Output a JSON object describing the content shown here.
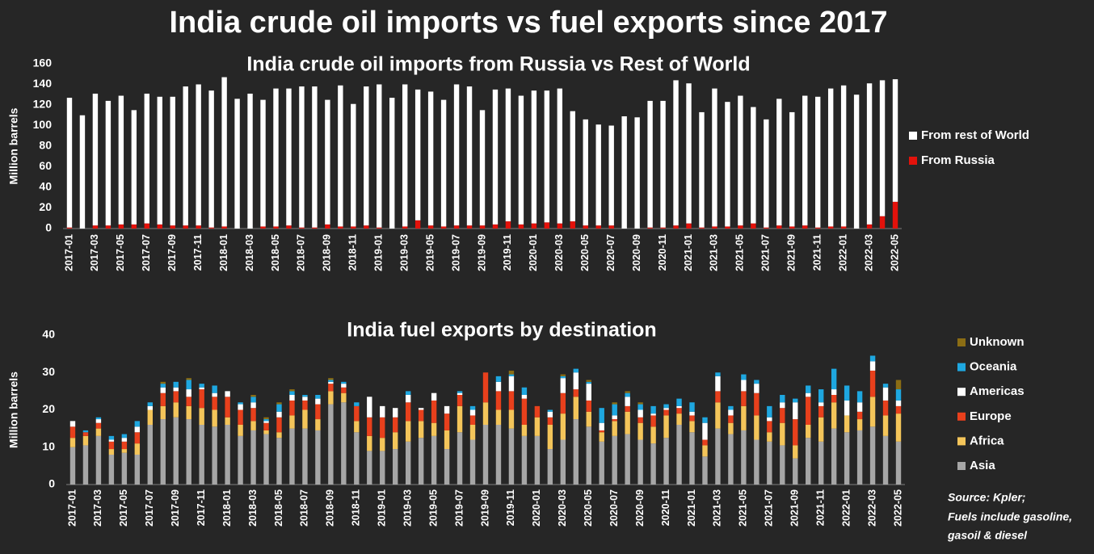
{
  "title": "India crude oil imports vs fuel exports since 2017",
  "notes": [
    "Source: Kpler;",
    "Fuels include gasoline,",
    "gasoil & diesel"
  ],
  "chart_data": [
    {
      "type": "stacked_bar",
      "title": "India crude oil imports from Russia vs Rest of World",
      "y_label": "Million barrels",
      "categories": [
        "2017-01",
        null,
        "2017-03",
        null,
        "2017-05",
        null,
        "2017-07",
        null,
        "2017-09",
        null,
        "2017-11",
        null,
        "2018-01",
        null,
        "2018-03",
        null,
        "2018-05",
        null,
        "2018-07",
        null,
        "2018-09",
        null,
        "2018-11",
        null,
        "2019-01",
        null,
        "2019-03",
        null,
        "2019-05",
        null,
        "2019-07",
        null,
        "2019-09",
        null,
        "2019-11",
        null,
        "2020-01",
        null,
        "2020-03",
        null,
        "2020-05",
        null,
        "2020-07",
        null,
        "2020-09",
        null,
        "2020-11",
        null,
        "2021-01",
        null,
        "2021-03",
        null,
        "2021-05",
        null,
        "2021-07",
        null,
        "2021-09",
        null,
        "2021-11",
        null,
        "2022-01",
        null,
        "2022-03",
        null,
        "2022-05"
      ],
      "series": [
        {
          "name": "From Russia",
          "color": "#e3120b",
          "values": [
            1,
            0,
            3,
            3,
            4,
            4,
            5,
            4,
            3,
            3,
            3,
            1,
            2,
            0,
            0,
            2,
            2,
            3,
            1,
            1,
            4,
            2,
            2,
            3,
            1,
            0,
            2,
            8,
            3,
            2,
            3,
            3,
            3,
            4,
            7,
            4,
            5,
            6,
            5,
            7,
            3,
            3,
            3,
            0,
            0,
            1,
            1,
            3,
            5,
            1,
            2,
            2,
            3,
            5,
            1,
            3,
            2,
            3,
            1,
            2,
            2,
            0,
            4,
            12,
            26
          ]
        },
        {
          "name": "From rest of World",
          "color": "#ffffff",
          "values": [
            126,
            110,
            128,
            121,
            125,
            111,
            126,
            124,
            125,
            135,
            137,
            133,
            145,
            126,
            131,
            123,
            134,
            133,
            137,
            137,
            121,
            137,
            119,
            135,
            139,
            127,
            138,
            127,
            130,
            123,
            137,
            135,
            112,
            131,
            129,
            125,
            129,
            128,
            131,
            107,
            103,
            98,
            97,
            109,
            108,
            123,
            123,
            141,
            136,
            112,
            134,
            121,
            126,
            113,
            105,
            123,
            111,
            126,
            127,
            134,
            137,
            130,
            137,
            132,
            119
          ]
        }
      ],
      "ylim": [
        0,
        160
      ],
      "yticks": [
        0,
        20,
        40,
        60,
        80,
        100,
        120,
        140,
        160
      ],
      "grid": false,
      "legend": "right"
    },
    {
      "type": "stacked_bar",
      "title": "India fuel exports by destination",
      "y_label": "Million barrels",
      "categories": [
        "2017-01",
        null,
        "2017-03",
        null,
        "2017-05",
        null,
        "2017-07",
        null,
        "2017-09",
        null,
        "2017-11",
        null,
        "2018-01",
        null,
        "2018-03",
        null,
        "2018-05",
        null,
        "2018-07",
        null,
        "2018-09",
        null,
        "2018-11",
        null,
        "2019-01",
        null,
        "2019-03",
        null,
        "2019-05",
        null,
        "2019-07",
        null,
        "2019-09",
        null,
        "2019-11",
        null,
        "2020-01",
        null,
        "2020-03",
        null,
        "2020-05",
        null,
        "2020-07",
        null,
        "2020-09",
        null,
        "2020-11",
        null,
        "2021-01",
        null,
        "2021-03",
        null,
        "2021-05",
        null,
        "2021-07",
        null,
        "2021-09",
        null,
        "2021-11",
        null,
        "2022-01",
        null,
        "2022-03",
        null,
        "2022-05"
      ],
      "series": [
        {
          "name": "Asia",
          "color": "#a6a6a6",
          "values": [
            10,
            10.5,
            13,
            8,
            8.5,
            8,
            16,
            17.5,
            18,
            17.5,
            16,
            15.5,
            16,
            13,
            14.5,
            13.5,
            12.5,
            15,
            15,
            14.5,
            21.5,
            22,
            14,
            9,
            9,
            9.5,
            11.5,
            12.5,
            13,
            9.5,
            14,
            12,
            16,
            16,
            15,
            13,
            13,
            9.5,
            12,
            17.5,
            15.5,
            11.5,
            13,
            13.5,
            12,
            11,
            12.5,
            16,
            14,
            7.5,
            15,
            13.5,
            14.5,
            12,
            11.5,
            10.5,
            7,
            12.5,
            11.5,
            15,
            14,
            14.5,
            15.5,
            13,
            11.5
          ]
        },
        {
          "name": "Africa",
          "color": "#f4c55a",
          "values": [
            2.5,
            2.5,
            2,
            1.5,
            1,
            3,
            4,
            3.5,
            4,
            3.5,
            4.5,
            4.5,
            2,
            3,
            2.5,
            1,
            1.5,
            3.5,
            5,
            3,
            3.5,
            2.5,
            3,
            4,
            3.5,
            4.5,
            5.5,
            4.5,
            3.5,
            5,
            7,
            4,
            6,
            4,
            5,
            3,
            5,
            6.5,
            7,
            6,
            4,
            2.5,
            4,
            6,
            4.5,
            4.5,
            6,
            3,
            3,
            3,
            7,
            3,
            6.5,
            6.5,
            2.5,
            6,
            3.5,
            3.5,
            6.5,
            7,
            4.5,
            3,
            8,
            5.5,
            7.5
          ]
        },
        {
          "name": "Europe",
          "color": "#e8401c",
          "values": [
            3,
            1,
            1.5,
            2,
            2,
            3,
            0,
            3.5,
            3,
            2.5,
            5,
            3.5,
            5.5,
            4,
            3.5,
            2,
            4,
            4,
            2.5,
            4,
            2,
            1.5,
            4,
            5,
            5.5,
            4,
            5,
            3,
            6,
            4.5,
            3,
            2.5,
            8,
            5,
            5,
            7,
            3,
            2,
            5.5,
            2,
            3,
            0.5,
            0.5,
            1.5,
            1.5,
            3,
            1.5,
            1.5,
            1.5,
            1.5,
            3,
            2,
            4,
            6,
            3,
            4,
            7,
            7.5,
            3,
            2,
            0,
            2,
            7,
            4,
            2
          ]
        },
        {
          "name": "Americas",
          "color": "#ffffff",
          "values": [
            1.5,
            0,
            1,
            0.5,
            1,
            1.5,
            1,
            1.5,
            1,
            2,
            0.5,
            1,
            1.5,
            1.5,
            1.5,
            0.5,
            1.5,
            1.5,
            1,
            1.5,
            0.5,
            1,
            0,
            5.5,
            3,
            2.5,
            2,
            0.5,
            2,
            2,
            0.5,
            1.5,
            0,
            2.5,
            4,
            1,
            0,
            1.5,
            4,
            4.5,
            4.5,
            2,
            1,
            2.5,
            2,
            0.5,
            0.5,
            0.5,
            1,
            4.5,
            4,
            1.5,
            3,
            2.5,
            1,
            1.5,
            4.5,
            1,
            1,
            1.5,
            4,
            2.5,
            2.5,
            3.5,
            1.5
          ]
        },
        {
          "name": "Oceania",
          "color": "#1ea7e0",
          "values": [
            0,
            0.5,
            0.5,
            1,
            1,
            1.5,
            1,
            1,
            1.5,
            2.5,
            1,
            2,
            0,
            0.5,
            1.5,
            0.5,
            2,
            1,
            0.5,
            1,
            0.5,
            0.5,
            1,
            0,
            0,
            0,
            1,
            0,
            0,
            0,
            0.5,
            1,
            0,
            1.5,
            0.5,
            2,
            0,
            0.5,
            0.5,
            1,
            0.5,
            4,
            3,
            1,
            1.5,
            2,
            1,
            2,
            2.5,
            1.5,
            1,
            1,
            1.5,
            1,
            3,
            2,
            1,
            2,
            3.5,
            5.5,
            4,
            3,
            1.5,
            1,
            3
          ]
        },
        {
          "name": "Unknown",
          "color": "#8b6d14",
          "values": [
            0,
            0,
            0,
            0,
            0,
            0,
            0,
            0.5,
            0,
            0.5,
            0,
            0,
            0,
            0,
            0.5,
            0.5,
            0.5,
            0.5,
            0,
            0,
            0.5,
            0,
            0,
            0,
            0,
            0,
            0,
            0,
            0,
            0,
            0,
            0,
            0,
            0,
            1,
            0,
            0,
            0,
            0.5,
            0,
            0.5,
            0,
            0.5,
            0.5,
            0.5,
            0,
            0,
            0,
            0,
            0,
            0,
            0,
            0,
            0,
            0,
            0,
            0,
            0,
            0,
            0,
            0,
            0,
            0,
            0,
            2.5
          ]
        }
      ],
      "ylim": [
        0,
        40
      ],
      "yticks": [
        0,
        10,
        20,
        30,
        40
      ],
      "grid": false,
      "legend": "right"
    }
  ]
}
